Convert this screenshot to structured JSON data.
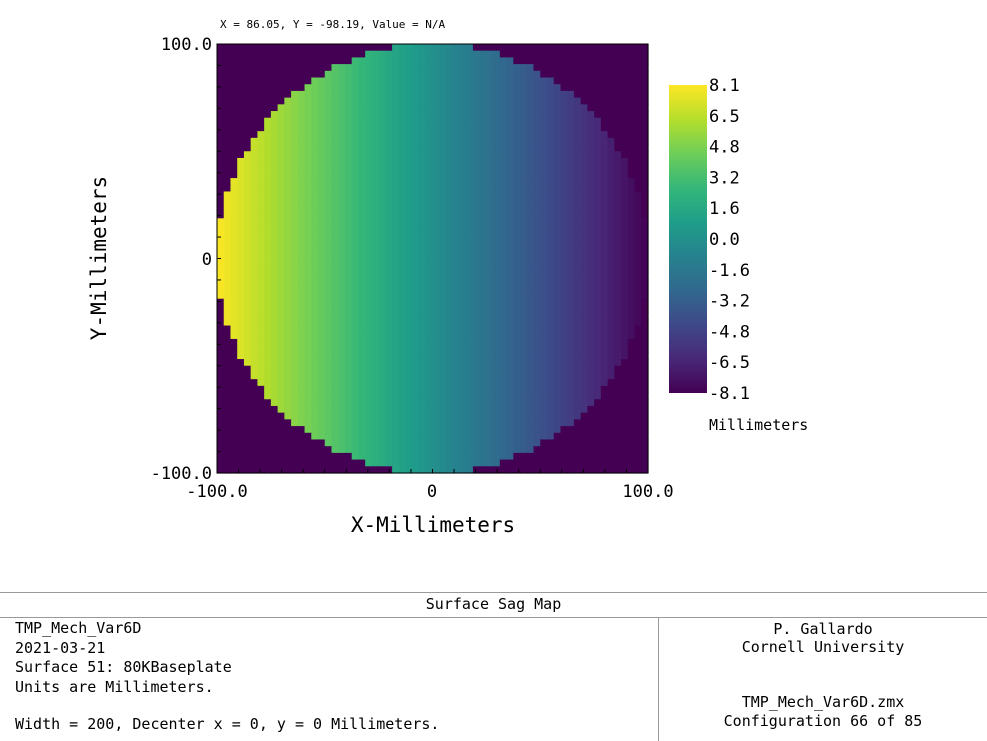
{
  "readout": "X = 86.05, Y = -98.19, Value = N/A",
  "chart_data": {
    "type": "heatmap",
    "title": "Surface Sag Map",
    "xlabel": "X-Millimeters",
    "ylabel": "Y-Millimeters",
    "xlim": [
      -100.0,
      100.0
    ],
    "ylim": [
      -100.0,
      100.0
    ],
    "x_tick_labels": [
      "-100.0",
      "0",
      "100.0"
    ],
    "y_tick_labels": [
      "100.0",
      "0",
      "-100.0"
    ],
    "aperture_radius": 100,
    "value_model": "linear tilt in X: value = -8.1 * x / 100 inside circular aperture, background = minimum",
    "grid_cells": 64,
    "colormap": "viridis",
    "colormap_stops": [
      "#440154",
      "#482878",
      "#3e4989",
      "#31688e",
      "#26828e",
      "#1f9e89",
      "#35b779",
      "#6ece58",
      "#b5de2b",
      "#fde725"
    ],
    "colorbar": {
      "min": -8.1,
      "max": 8.1,
      "tick_labels": [
        "8.1",
        "6.5",
        "4.8",
        "3.2",
        "1.6",
        "0.0",
        "-1.6",
        "-3.2",
        "-4.8",
        "-6.5",
        "-8.1"
      ],
      "unit_label": "Millimeters"
    }
  },
  "footer": {
    "title": "Surface Sag Map",
    "left_lines": [
      "TMP_Mech_Var6D",
      "2021-03-21",
      "Surface 51: 80KBaseplate",
      "Units are Millimeters.",
      "",
      "Width = 200, Decenter x = 0, y = 0 Millimeters."
    ],
    "right_top": [
      "P. Gallardo",
      "Cornell University"
    ],
    "right_bottom": [
      "TMP_Mech_Var6D.zmx",
      "Configuration 66 of 85"
    ]
  }
}
